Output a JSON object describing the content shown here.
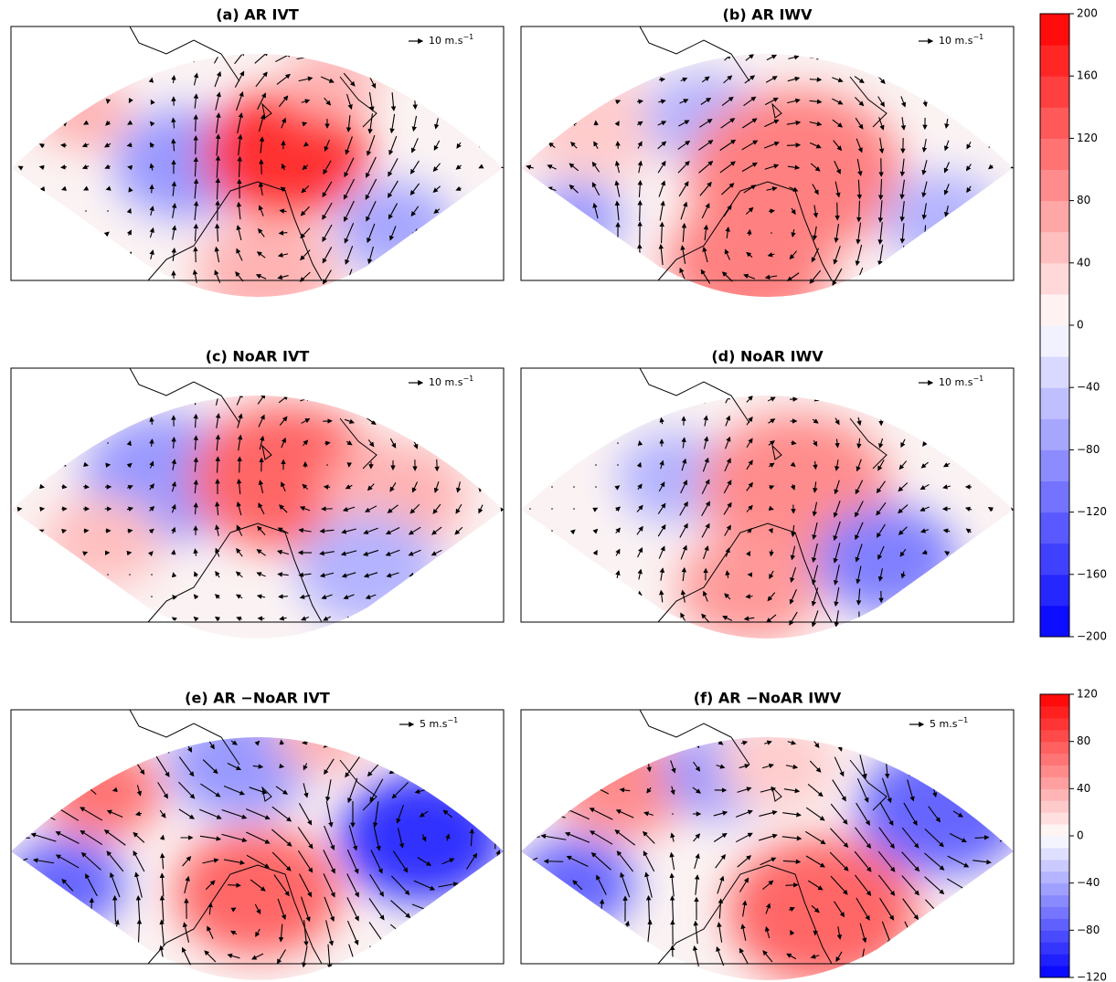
{
  "panels": [
    {
      "title": "(a) AR IVT",
      "ref_vector": {
        "text": "10 m.s",
        "exponent": "−1"
      }
    },
    {
      "title": "(b) AR IWV",
      "ref_vector": {
        "text": "10 m.s",
        "exponent": "−1"
      }
    },
    {
      "title": "(c) NoAR IVT",
      "ref_vector": {
        "text": "10 m.s",
        "exponent": "−1"
      }
    },
    {
      "title": "(d) NoAR IWV",
      "ref_vector": {
        "text": "10 m.s",
        "exponent": "−1"
      }
    },
    {
      "title": "(e) AR −NoAR IVT",
      "ref_vector": {
        "text": "5 m.s",
        "exponent": "−1"
      }
    },
    {
      "title": "(f) AR −NoAR IWV",
      "ref_vector": {
        "text": "5 m.s",
        "exponent": "−1"
      }
    }
  ],
  "colorbars": [
    {
      "lim": [
        -200,
        200
      ],
      "bands": 20,
      "ticks": [
        {
          "value": -200,
          "label": "−200"
        },
        {
          "value": -160,
          "label": "−160"
        },
        {
          "value": -120,
          "label": "−120"
        },
        {
          "value": -80,
          "label": "−80"
        },
        {
          "value": -40,
          "label": "−40"
        },
        0,
        40,
        80,
        120,
        160,
        200
      ]
    },
    {
      "lim": [
        -120,
        120
      ],
      "bands": 24,
      "ticks": [
        {
          "value": -120,
          "label": "−120"
        },
        {
          "value": -80,
          "label": "−80"
        },
        {
          "value": -40,
          "label": "−40"
        },
        0,
        40,
        80,
        120
      ]
    }
  ]
}
